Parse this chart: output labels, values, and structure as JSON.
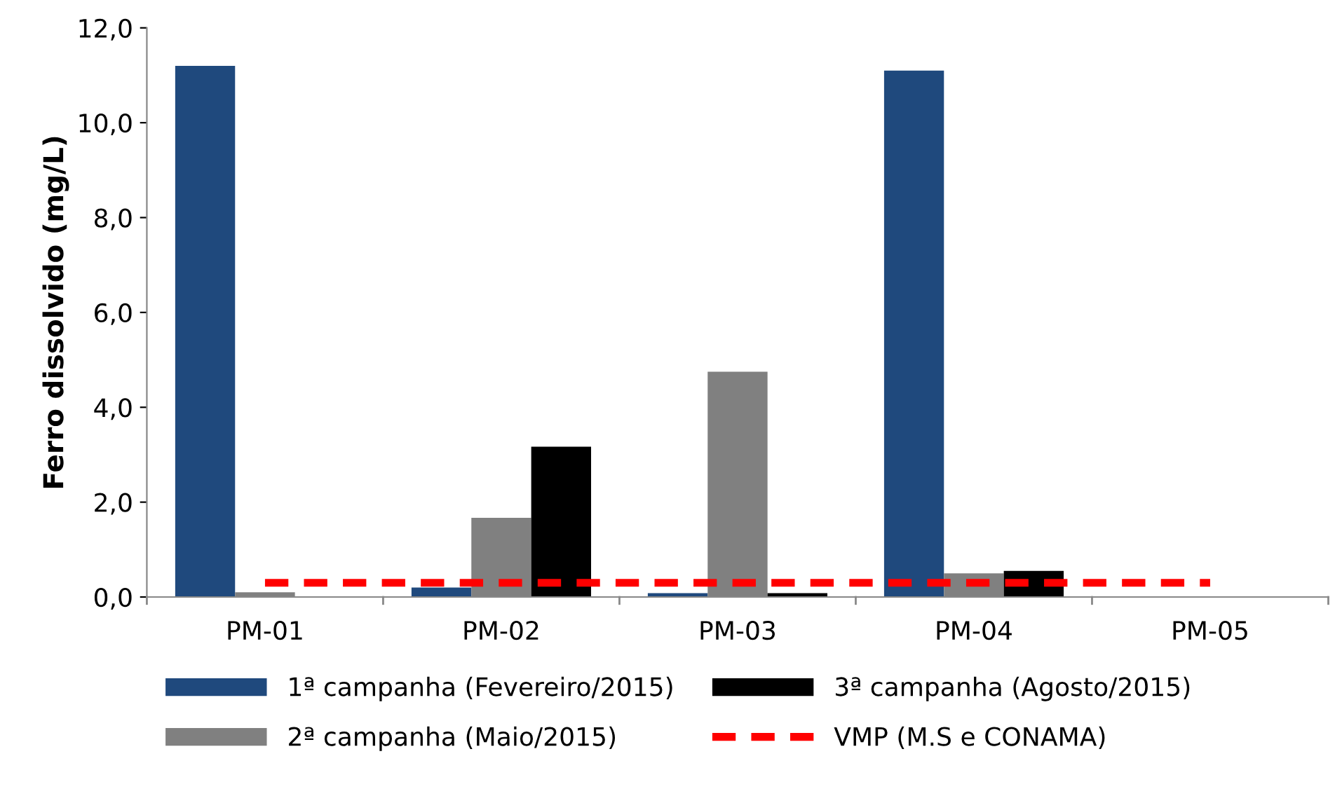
{
  "chart_data": {
    "type": "bar",
    "ylabel": "Ferro dissolvido (mg/L)",
    "categories": [
      "PM-01",
      "PM-02",
      "PM-03",
      "PM-04",
      "PM-05"
    ],
    "series": [
      {
        "name": "1ª campanha (Fevereiro/2015)",
        "color": "#1f497d",
        "values": [
          11.2,
          0.2,
          0.08,
          11.1,
          0
        ]
      },
      {
        "name": "2ª campanha (Maio/2015)",
        "color": "#808080",
        "values": [
          0.1,
          1.67,
          4.75,
          0.5,
          0
        ]
      },
      {
        "name": "3ª campanha (Agosto/2015)",
        "color": "#000000",
        "values": [
          0,
          3.17,
          0.08,
          0.55,
          0
        ]
      },
      {
        "name": "VMP (M.S e CONAMA)",
        "color": "#ff0000",
        "type": "line",
        "line_style": "dashed",
        "values": [
          0.3,
          0.3,
          0.3,
          0.3,
          0.3
        ]
      }
    ],
    "ylim": [
      0,
      12
    ],
    "yticks": [
      {
        "value": 0,
        "label": "0,0"
      },
      {
        "value": 2,
        "label": "2,0"
      },
      {
        "value": 4,
        "label": "4,0"
      },
      {
        "value": 6,
        "label": "6,0"
      },
      {
        "value": 8,
        "label": "8,0"
      },
      {
        "value": 10,
        "label": "10,0"
      },
      {
        "value": 12,
        "label": "12,0"
      }
    ],
    "grid": false,
    "legend": "bottom"
  }
}
